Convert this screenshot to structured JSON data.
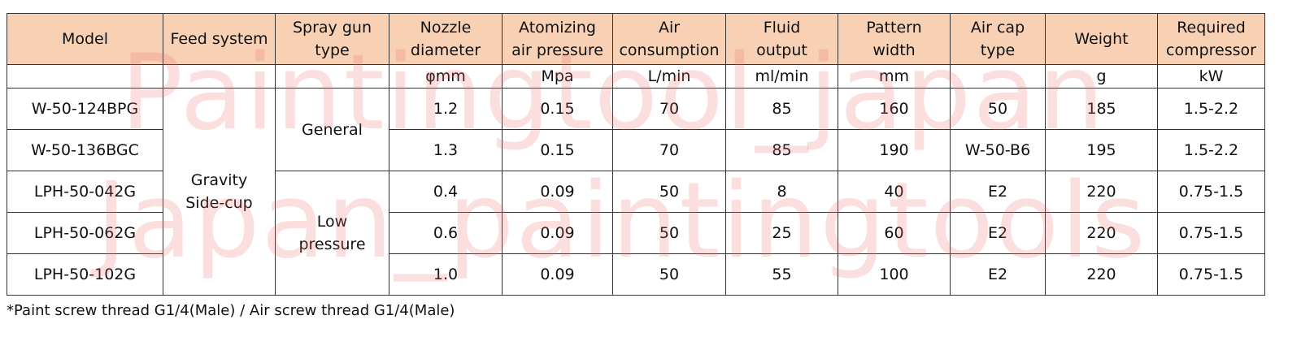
{
  "table": {
    "headers": [
      [
        "Model"
      ],
      [
        "Feed system"
      ],
      [
        "Spray gun",
        "type"
      ],
      [
        "Nozzle",
        "diameter"
      ],
      [
        "Atomizing",
        "air pressure"
      ],
      [
        "Air",
        "consumption"
      ],
      [
        "Fluid",
        "output"
      ],
      [
        "Pattern",
        "width"
      ],
      [
        "Air cap",
        "type"
      ],
      [
        "Weight"
      ],
      [
        "Required",
        "compressor"
      ]
    ],
    "units": [
      null,
      null,
      null,
      "φmm",
      "Mpa",
      "L/min",
      "ml/min",
      "mm",
      null,
      "g",
      "kW"
    ],
    "rows": [
      [
        "W-50-124BPG",
        [
          "Gravity",
          "Side-cup"
        ],
        [
          "General"
        ],
        "1.2",
        "0.15",
        "70",
        "85",
        "160",
        "50",
        "185",
        "1.5-2.2"
      ],
      [
        "W-50-136BGC",
        null,
        null,
        "1.3",
        "0.15",
        "70",
        "85",
        "190",
        "W-50-B6",
        "195",
        "1.5-2.2"
      ],
      [
        "LPH-50-042G",
        null,
        [
          "Low",
          "pressure"
        ],
        "0.4",
        "0.09",
        "50",
        "8",
        "40",
        "E2",
        "220",
        "0.75-1.5"
      ],
      [
        "LPH-50-062G",
        null,
        null,
        "0.6",
        "0.09",
        "50",
        "25",
        "60",
        "E2",
        "220",
        "0.75-1.5"
      ],
      [
        "LPH-50-102G",
        null,
        null,
        "1.0",
        "0.09",
        "50",
        "55",
        "100",
        "E2",
        "220",
        "0.75-1.5"
      ]
    ]
  },
  "footnote": "*Paint screw thread G1/4(Male) / Air screw thread G1/4(Male)",
  "watermarks": [
    "Paintingtool_japan",
    "Japan_paintingtools"
  ]
}
